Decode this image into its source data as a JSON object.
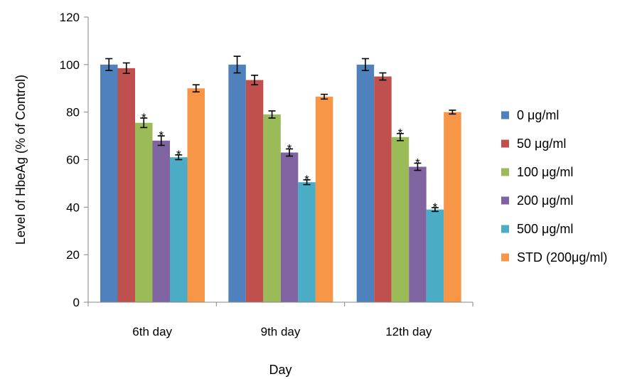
{
  "chart_data": {
    "type": "bar",
    "title": "",
    "xlabel": "Day",
    "ylabel": "Level of HbeAg (% of Control)",
    "ylim": [
      0,
      120
    ],
    "yticks": [
      0,
      20,
      40,
      60,
      80,
      100,
      120
    ],
    "grid": false,
    "legend_position": "right",
    "categories": [
      "6th day",
      "9th day",
      "12th day"
    ],
    "series": [
      {
        "name": "0 μg/ml",
        "color": "#4f81bd",
        "values": [
          100,
          100,
          100
        ],
        "errors": [
          2.5,
          3.5,
          2.5
        ],
        "significant": [
          false,
          false,
          false
        ]
      },
      {
        "name": "50 μg/ml",
        "color": "#c0504d",
        "values": [
          98.5,
          93.5,
          95
        ],
        "errors": [
          2.2,
          2.0,
          1.5
        ],
        "significant": [
          false,
          false,
          false
        ]
      },
      {
        "name": "100 μg/ml",
        "color": "#9bbb59",
        "values": [
          75.5,
          79,
          69.5
        ],
        "errors": [
          2.0,
          1.5,
          1.5
        ],
        "significant": [
          true,
          false,
          true
        ]
      },
      {
        "name": "200 μg/ml",
        "color": "#8064a2",
        "values": [
          68,
          63,
          57
        ],
        "errors": [
          2.0,
          1.5,
          1.5
        ],
        "significant": [
          true,
          true,
          true
        ]
      },
      {
        "name": "500 μg/ml",
        "color": "#4bacc6",
        "values": [
          61,
          50.5,
          39
        ],
        "errors": [
          1.0,
          1.0,
          0.8
        ],
        "significant": [
          true,
          true,
          true
        ]
      },
      {
        "name": "STD (200μg/ml)",
        "color": "#f79646",
        "values": [
          90,
          86.5,
          80
        ],
        "errors": [
          1.5,
          1.0,
          0.8
        ],
        "significant": [
          false,
          false,
          false
        ]
      }
    ],
    "significance_marker": "*"
  }
}
